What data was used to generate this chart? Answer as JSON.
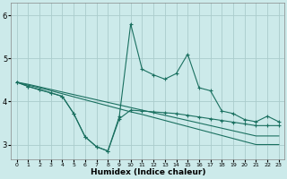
{
  "xlabel": "Humidex (Indice chaleur)",
  "background_color": "#cceaea",
  "grid_color": "#aacccc",
  "line_color": "#1a7060",
  "x_values": [
    0,
    1,
    2,
    3,
    4,
    5,
    6,
    7,
    8,
    9,
    10,
    11,
    12,
    13,
    14,
    15,
    16,
    17,
    18,
    19,
    20,
    21,
    22,
    23
  ],
  "line_spike_y": [
    4.45,
    4.35,
    4.28,
    4.2,
    4.12,
    3.72,
    3.18,
    2.95,
    2.85,
    3.65,
    5.8,
    4.75,
    4.62,
    4.52,
    4.65,
    5.1,
    4.32,
    4.25,
    3.78,
    3.72,
    3.58,
    3.53,
    3.66,
    3.53
  ],
  "line_diag1_y": [
    4.45,
    4.38,
    4.32,
    4.25,
    4.18,
    4.11,
    4.04,
    3.97,
    3.9,
    3.83,
    3.76,
    3.7,
    3.63,
    3.56,
    3.49,
    3.42,
    3.35,
    3.28,
    3.21,
    3.14,
    3.07,
    3.0,
    3.0,
    3.0
  ],
  "line_diag2_y": [
    4.45,
    4.4,
    4.34,
    4.28,
    4.22,
    4.16,
    4.1,
    4.04,
    3.98,
    3.92,
    3.86,
    3.8,
    3.74,
    3.68,
    3.62,
    3.56,
    3.5,
    3.44,
    3.38,
    3.32,
    3.26,
    3.2,
    3.2,
    3.2
  ],
  "line_mild_y": [
    4.45,
    4.35,
    4.27,
    4.2,
    4.12,
    3.72,
    3.18,
    2.95,
    2.85,
    3.6,
    3.8,
    3.78,
    3.76,
    3.74,
    3.72,
    3.68,
    3.64,
    3.6,
    3.56,
    3.52,
    3.48,
    3.44,
    3.44,
    3.44
  ],
  "ylim": [
    2.65,
    6.3
  ],
  "yticks": [
    3,
    4,
    5,
    6
  ],
  "xlim": [
    -0.5,
    23.5
  ],
  "xtick_labels": [
    "0",
    "1",
    "2",
    "3",
    "4",
    "5",
    "6",
    "7",
    "8",
    "9",
    "10",
    "11",
    "12",
    "13",
    "14",
    "15",
    "16",
    "17",
    "18",
    "19",
    "20",
    "21",
    "22",
    "23"
  ]
}
